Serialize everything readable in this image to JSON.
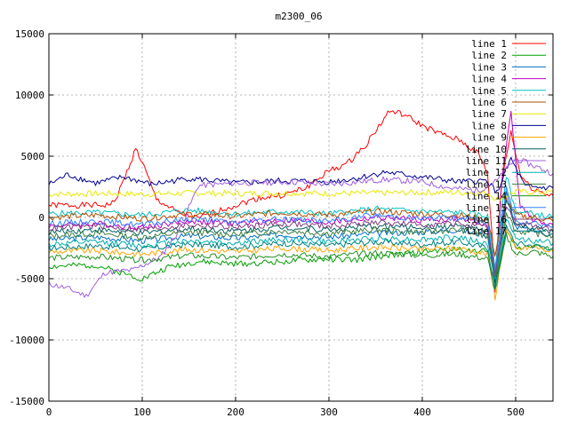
{
  "chart_data": {
    "type": "line",
    "title": "m2300_06",
    "xlabel": "",
    "ylabel": "",
    "xlim": [
      0,
      540
    ],
    "ylim": [
      -15000,
      15000
    ],
    "xticks": [
      0,
      100,
      200,
      300,
      400,
      500
    ],
    "yticks": [
      -15000,
      -10000,
      -5000,
      0,
      5000,
      10000,
      15000
    ],
    "xtick_labels": [
      "0",
      "100",
      "200",
      "300",
      "400",
      "500"
    ],
    "ytick_labels": [
      "-15000",
      "-10000",
      "-5000",
      "0",
      "5000",
      "10000",
      "15000"
    ],
    "grid": true,
    "legend_position": "top-right",
    "series": [
      {
        "name": "line 1",
        "color": "#ff0000",
        "x": [
          0,
          60,
          70,
          80,
          93,
          100,
          115,
          140,
          160,
          180,
          200,
          225,
          250,
          275,
          300,
          320,
          340,
          365,
          380,
          400,
          420,
          440,
          460,
          470,
          478,
          485,
          495,
          505,
          515,
          530,
          540
        ],
        "y": [
          1000,
          1000,
          1200,
          3000,
          5600,
          4500,
          1500,
          300,
          -100,
          500,
          1000,
          1600,
          1800,
          2400,
          3800,
          4400,
          6000,
          8700,
          8400,
          7500,
          6800,
          6300,
          5200,
          3500,
          -5000,
          3000,
          7000,
          3500,
          2500,
          2000,
          1800
        ]
      },
      {
        "name": "line 2",
        "color": "#00a000",
        "x": [
          0,
          50,
          100,
          130,
          160,
          200,
          250,
          300,
          330,
          350,
          400,
          440,
          470,
          478,
          490,
          500,
          520,
          540
        ],
        "y": [
          -4000,
          -3900,
          -5000,
          -4000,
          -3600,
          -3800,
          -3600,
          -3400,
          -3500,
          -3200,
          -2800,
          -2600,
          -2800,
          -5500,
          -1000,
          -2500,
          -2200,
          -2700
        ]
      },
      {
        "name": "line 3",
        "color": "#0070c0",
        "x": [
          0,
          50,
          100,
          150,
          200,
          250,
          300,
          350,
          400,
          440,
          470,
          478,
          490,
          500,
          520,
          540
        ],
        "y": [
          -1800,
          -1600,
          -1900,
          -1500,
          -1700,
          -1400,
          -1600,
          -1300,
          -1200,
          -1000,
          -1500,
          -5000,
          2000,
          -800,
          -1100,
          -1400
        ]
      },
      {
        "name": "line 4",
        "color": "#c000c0",
        "x": [
          0,
          50,
          100,
          150,
          200,
          250,
          300,
          350,
          400,
          440,
          470,
          478,
          485,
          495,
          505,
          520,
          540
        ],
        "y": [
          -700,
          -500,
          -800,
          -300,
          -500,
          -200,
          -400,
          0,
          -200,
          -100,
          -600,
          -6000,
          3000,
          8500,
          1000,
          -300,
          -600
        ]
      },
      {
        "name": "line 5",
        "color": "#00c0c0",
        "x": [
          0,
          50,
          100,
          150,
          200,
          250,
          300,
          350,
          400,
          440,
          470,
          478,
          490,
          500,
          520,
          540
        ],
        "y": [
          300,
          400,
          200,
          600,
          300,
          500,
          300,
          700,
          500,
          400,
          100,
          -4000,
          3500,
          500,
          300,
          0
        ]
      },
      {
        "name": "line 6",
        "color": "#b05000",
        "x": [
          0,
          50,
          100,
          150,
          200,
          250,
          300,
          350,
          400,
          440,
          470,
          478,
          490,
          500,
          520,
          540
        ],
        "y": [
          0,
          200,
          -100,
          300,
          100,
          400,
          200,
          500,
          300,
          200,
          -200,
          -3000,
          1500,
          200,
          0,
          -300
        ]
      },
      {
        "name": "line 7",
        "color": "#e8e800",
        "x": [
          0,
          60,
          100,
          160,
          200,
          260,
          300,
          360,
          420,
          470,
          480,
          500,
          540
        ],
        "y": [
          1900,
          1950,
          1900,
          2000,
          1950,
          2000,
          1950,
          2000,
          2050,
          2000,
          1500,
          2100,
          2050
        ]
      },
      {
        "name": "line 8",
        "color": "#000090",
        "x": [
          0,
          20,
          50,
          80,
          110,
          150,
          200,
          250,
          300,
          330,
          360,
          400,
          440,
          470,
          480,
          495,
          510,
          540
        ],
        "y": [
          2700,
          3500,
          2800,
          3300,
          2700,
          3200,
          2800,
          3000,
          2900,
          3200,
          3700,
          3300,
          2900,
          3000,
          2000,
          4800,
          2500,
          2400
        ]
      },
      {
        "name": "line 9",
        "color": "#ffa500",
        "x": [
          0,
          50,
          100,
          150,
          200,
          250,
          300,
          350,
          400,
          440,
          470,
          478,
          490,
          500,
          520,
          540
        ],
        "y": [
          -2800,
          -2700,
          -3000,
          -2600,
          -2800,
          -2500,
          -2700,
          -2400,
          -2600,
          -2500,
          -3000,
          -6500,
          -1000,
          -2600,
          -2400,
          -2800
        ]
      },
      {
        "name": "line 10",
        "color": "#006060",
        "x": [
          0,
          50,
          100,
          150,
          200,
          250,
          300,
          350,
          400,
          440,
          470,
          478,
          490,
          500,
          520,
          540
        ],
        "y": [
          -1200,
          -1000,
          -1300,
          -900,
          -1100,
          -800,
          -1000,
          -700,
          -800,
          -700,
          -1200,
          -5500,
          1500,
          -600,
          -900,
          -1200
        ]
      },
      {
        "name": "line 11",
        "color": "#a060e0",
        "x": [
          0,
          20,
          40,
          60,
          90,
          120,
          140,
          160,
          200,
          260,
          300,
          360,
          400,
          430,
          460,
          480,
          500,
          520,
          540
        ],
        "y": [
          -5400,
          -5800,
          -6400,
          -4500,
          -4300,
          -3200,
          -1000,
          2600,
          2800,
          2900,
          2700,
          3100,
          2900,
          2400,
          2200,
          3000,
          4800,
          4200,
          3600
        ]
      },
      {
        "name": "line 12",
        "color": "#00b0b0",
        "x": [
          0,
          50,
          100,
          150,
          200,
          250,
          300,
          350,
          400,
          440,
          470,
          478,
          490,
          500,
          520,
          540
        ],
        "y": [
          -2200,
          -2000,
          -2300,
          -1900,
          -2100,
          -1800,
          -2000,
          -1700,
          -1800,
          -1600,
          -2200,
          -5200,
          -200,
          -1700,
          -1900,
          -2100
        ]
      },
      {
        "name": "line 13",
        "color": "#408040",
        "x": [
          0,
          50,
          100,
          150,
          200,
          250,
          300,
          350,
          400,
          440,
          470,
          478,
          490,
          500,
          520,
          540
        ],
        "y": [
          -1500,
          -1300,
          -1600,
          -1200,
          -1400,
          -1100,
          -1300,
          -1000,
          -1200,
          -1000,
          -1600,
          -5000,
          500,
          -1100,
          -1300,
          -1500
        ]
      },
      {
        "name": "line 14",
        "color": "#209020",
        "x": [
          0,
          50,
          100,
          150,
          200,
          250,
          300,
          350,
          400,
          440,
          470,
          478,
          490,
          500,
          520,
          540
        ],
        "y": [
          -3300,
          -3200,
          -3500,
          -3100,
          -3300,
          -3000,
          -3200,
          -2900,
          -3100,
          -3000,
          -3400,
          -6000,
          -1500,
          -3000,
          -2800,
          -3200
        ]
      },
      {
        "name": "line 15",
        "color": "#3080ff",
        "x": [
          0,
          50,
          100,
          150,
          200,
          250,
          300,
          350,
          400,
          440,
          470,
          478,
          490,
          500,
          520,
          540
        ],
        "y": [
          -500,
          -300,
          -600,
          -100,
          -400,
          -100,
          -300,
          200,
          -100,
          0,
          -400,
          -4500,
          2500,
          -200,
          -400,
          -700
        ]
      },
      {
        "name": "line 16",
        "color": "#804080",
        "x": [
          0,
          50,
          100,
          150,
          200,
          250,
          300,
          350,
          400,
          440,
          470,
          478,
          490,
          500,
          520,
          540
        ],
        "y": [
          -900,
          -700,
          -1000,
          -600,
          -800,
          -500,
          -700,
          -400,
          -600,
          -500,
          -900,
          -4800,
          1000,
          -500,
          -700,
          -1000
        ]
      },
      {
        "name": "line 17",
        "color": "#008080",
        "x": [
          0,
          50,
          100,
          150,
          200,
          250,
          300,
          350,
          400,
          440,
          470,
          478,
          490,
          500,
          520,
          540
        ],
        "y": [
          -2500,
          -2300,
          -2600,
          -2200,
          -2400,
          -2100,
          -2300,
          -2000,
          -2200,
          -2000,
          -2500,
          -5800,
          -800,
          -2100,
          -2300,
          -2500
        ]
      }
    ]
  }
}
